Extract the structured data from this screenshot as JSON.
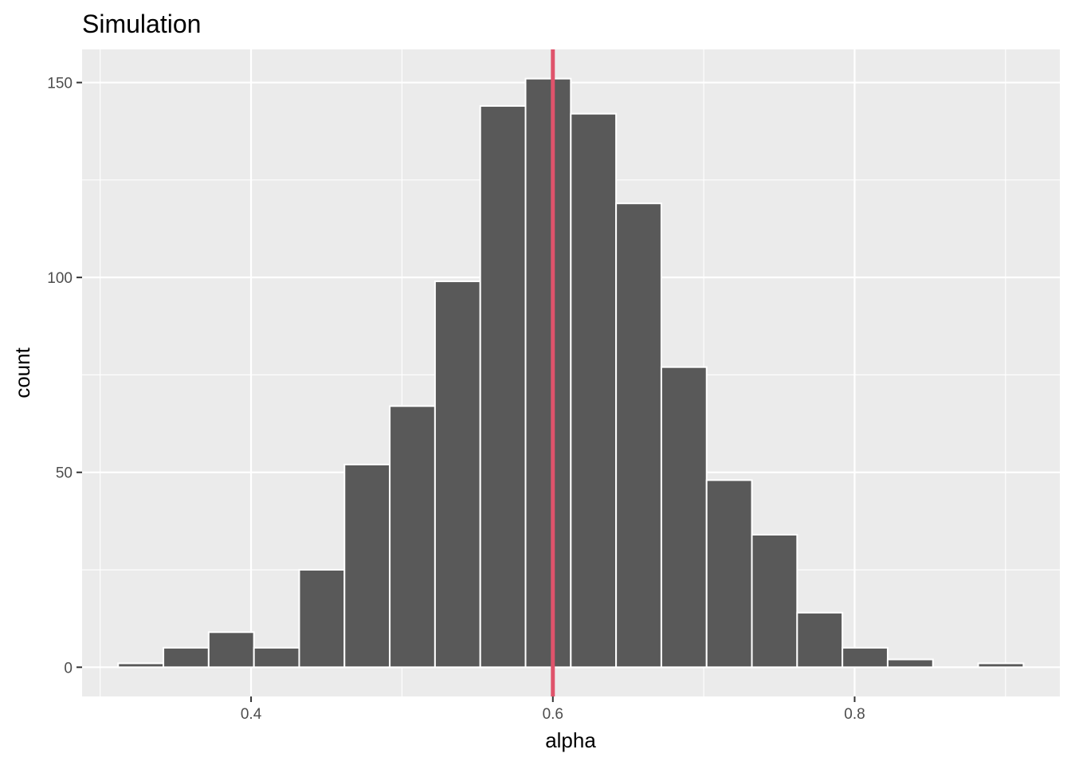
{
  "chart_data": {
    "type": "bar",
    "subtype": "histogram",
    "title": "Simulation",
    "xlabel": "alpha",
    "ylabel": "count",
    "xlim": [
      0.288,
      0.936
    ],
    "ylim": [
      -7.5,
      158.5
    ],
    "x_ticks": [
      0.4,
      0.6,
      0.8
    ],
    "x_tick_labels": [
      "0.4",
      "0.6",
      "0.8"
    ],
    "y_ticks": [
      0,
      50,
      100,
      150
    ],
    "y_tick_labels": [
      "0",
      "50",
      "100",
      "150"
    ],
    "x_minor_gridlines": [
      0.3,
      0.5,
      0.7,
      0.9
    ],
    "y_minor_gridlines": [
      25,
      75,
      125
    ],
    "grid": true,
    "bins": [
      {
        "xmin": 0.3119,
        "xmax": 0.3419,
        "count": 1
      },
      {
        "xmin": 0.3419,
        "xmax": 0.3719,
        "count": 5
      },
      {
        "xmin": 0.3719,
        "xmax": 0.4019,
        "count": 9
      },
      {
        "xmin": 0.4019,
        "xmax": 0.4319,
        "count": 5
      },
      {
        "xmin": 0.4319,
        "xmax": 0.4619,
        "count": 25
      },
      {
        "xmin": 0.4619,
        "xmax": 0.4919,
        "count": 52
      },
      {
        "xmin": 0.4919,
        "xmax": 0.5219,
        "count": 67
      },
      {
        "xmin": 0.5219,
        "xmax": 0.5519,
        "count": 99
      },
      {
        "xmin": 0.5519,
        "xmax": 0.5819,
        "count": 144
      },
      {
        "xmin": 0.5819,
        "xmax": 0.6119,
        "count": 151
      },
      {
        "xmin": 0.6119,
        "xmax": 0.6419,
        "count": 142
      },
      {
        "xmin": 0.6419,
        "xmax": 0.6719,
        "count": 119
      },
      {
        "xmin": 0.6719,
        "xmax": 0.7019,
        "count": 77
      },
      {
        "xmin": 0.7019,
        "xmax": 0.7319,
        "count": 48
      },
      {
        "xmin": 0.7319,
        "xmax": 0.7619,
        "count": 34
      },
      {
        "xmin": 0.7619,
        "xmax": 0.7919,
        "count": 14
      },
      {
        "xmin": 0.7919,
        "xmax": 0.8219,
        "count": 5
      },
      {
        "xmin": 0.8219,
        "xmax": 0.8519,
        "count": 2
      },
      {
        "xmin": 0.8519,
        "xmax": 0.8819,
        "count": 0
      },
      {
        "xmin": 0.8819,
        "xmax": 0.9119,
        "count": 1
      }
    ],
    "vline": {
      "x": 0.6,
      "color": "#df536b"
    },
    "colors": {
      "panel_background": "#ebebeb",
      "grid": "#ffffff",
      "bar_fill": "#595959",
      "bar_outline": "#ffffff",
      "tick_label": "#4d4d4d",
      "tick_mark": "#333333"
    }
  }
}
